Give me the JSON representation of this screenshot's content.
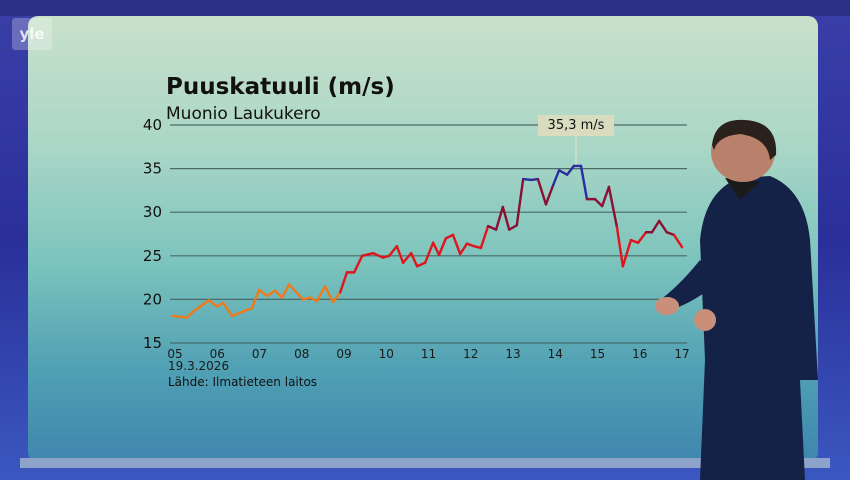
{
  "broadcaster_logo": "yle",
  "chart_data": {
    "type": "line",
    "title": "Puuskatuuli (m/s)",
    "subtitle": "Muonio Laukukero",
    "date_label": "19.3.2026",
    "source": "Lähde: Ilmatieteen laitos",
    "annotation": "35,3 m/s",
    "ylim": [
      15,
      40
    ],
    "yticks": [
      "15",
      "20",
      "25",
      "30",
      "35",
      "40"
    ],
    "xlim": [
      5,
      17
    ],
    "xticks": [
      "05",
      "06",
      "07",
      "08",
      "09",
      "10",
      "11",
      "12",
      "13",
      "14",
      "15",
      "16",
      "17"
    ],
    "grid": true,
    "legend": "none",
    "color_scale": {
      "low": "#f07a1a",
      "mid": "#e0141a",
      "high": "#8a1033",
      "max": "#2b2d9c"
    },
    "x": [
      4.93,
      5.12,
      5.28,
      5.43,
      5.8,
      5.99,
      6.14,
      6.35,
      6.61,
      6.82,
      6.99,
      7.18,
      7.37,
      7.53,
      7.7,
      8.03,
      8.2,
      8.36,
      8.55,
      8.74,
      8.91,
      9.07,
      9.24,
      9.43,
      9.69,
      9.92,
      10.07,
      10.25,
      10.4,
      10.59,
      10.73,
      10.92,
      11.11,
      11.25,
      11.41,
      11.58,
      11.75,
      11.91,
      12.08,
      12.24,
      12.41,
      12.6,
      12.76,
      12.91,
      13.09,
      13.24,
      13.43,
      13.59,
      13.78,
      13.95,
      14.09,
      14.28,
      14.44,
      14.61,
      14.75,
      14.94,
      15.11,
      15.27,
      15.46,
      15.6,
      15.79,
      15.96,
      16.15,
      16.29,
      16.46,
      16.64,
      16.81,
      17.0
    ],
    "y": [
      18.1,
      18.0,
      17.9,
      18.6,
      19.9,
      19.2,
      19.6,
      18.1,
      18.6,
      19.0,
      21.1,
      20.4,
      21.0,
      20.2,
      21.7,
      20.0,
      20.2,
      19.8,
      21.5,
      19.7,
      20.8,
      23.1,
      23.1,
      25.0,
      25.3,
      24.8,
      25.0,
      26.1,
      24.2,
      25.3,
      23.8,
      24.2,
      26.5,
      25.1,
      27.0,
      27.4,
      25.2,
      26.4,
      26.1,
      25.9,
      28.4,
      28.0,
      30.6,
      28.0,
      28.5,
      33.8,
      33.7,
      33.8,
      30.9,
      33.1,
      34.8,
      34.3,
      35.3,
      35.3,
      31.5,
      31.5,
      30.7,
      32.9,
      28.3,
      23.8,
      26.8,
      26.5,
      27.7,
      27.7,
      29.0,
      27.7,
      27.4,
      26.0
    ]
  }
}
